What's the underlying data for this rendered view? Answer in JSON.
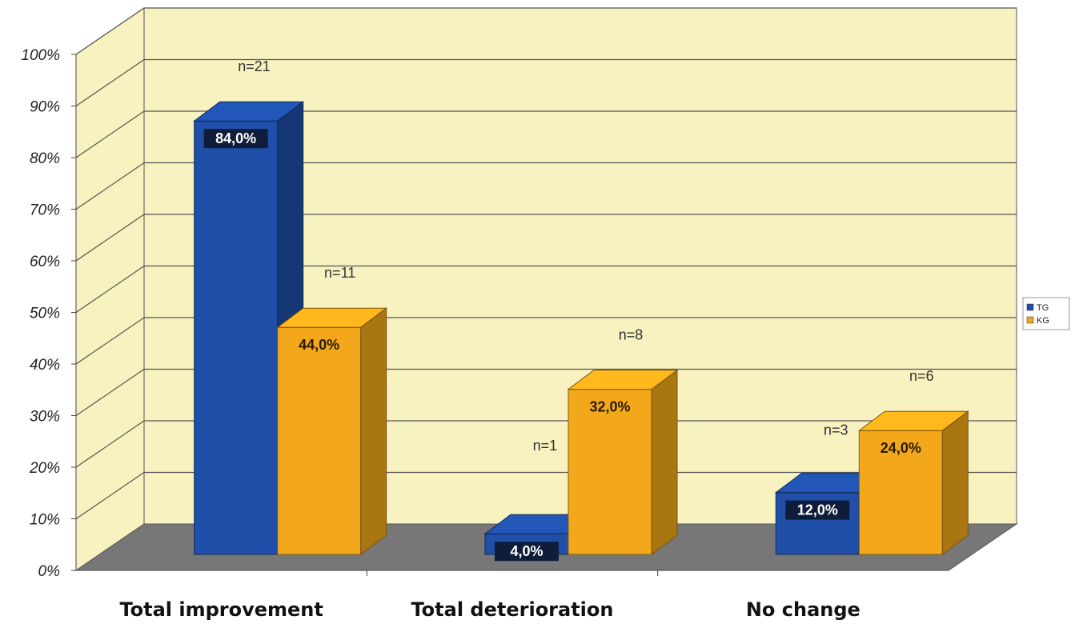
{
  "chart_data": {
    "type": "bar",
    "categories": [
      "Total improvement",
      "Total deterioration",
      "No change"
    ],
    "series": [
      {
        "name": "TG",
        "values": [
          84.0,
          4.0,
          12.0
        ],
        "value_labels": [
          "84,0%",
          "4,0%",
          "12,0%"
        ],
        "count_labels": [
          "n=21",
          "n=1",
          "n=3"
        ],
        "color": "#1f4fa8"
      },
      {
        "name": "KG",
        "values": [
          44.0,
          32.0,
          24.0
        ],
        "value_labels": [
          "44,0%",
          "32,0%",
          "24,0%"
        ],
        "count_labels": [
          "n=11",
          "n=8",
          "n=6"
        ],
        "color": "#f2a81a"
      }
    ],
    "yticks": [
      "0%",
      "10%",
      "20%",
      "30%",
      "40%",
      "50%",
      "60%",
      "70%",
      "80%",
      "90%",
      "100%"
    ],
    "ylim": [
      0,
      100
    ],
    "grid": true,
    "legend": "right",
    "wall_color": "#f7f2bf",
    "floor_color": "#777777"
  }
}
